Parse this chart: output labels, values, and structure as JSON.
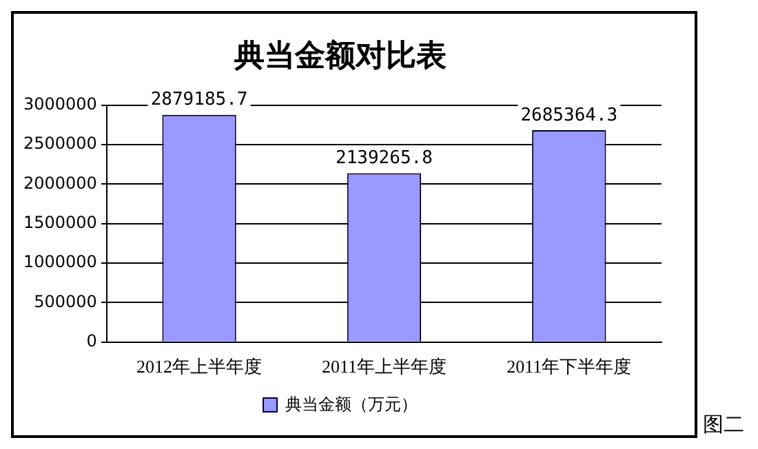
{
  "chart_data": {
    "type": "bar",
    "title": "典当金额对比表",
    "categories": [
      "2012年上半年度",
      "2011年上半年度",
      "2011年下半年度"
    ],
    "series": [
      {
        "name": "典当金额（万元）",
        "color": "#9999ff",
        "values": [
          2879185.7,
          2139265.8,
          2685364.3
        ]
      }
    ],
    "ylim": [
      0,
      3000000
    ],
    "yticks": [
      0,
      500000,
      1000000,
      1500000,
      2000000,
      2500000,
      3000000
    ],
    "grid": "y",
    "legend": "bottom",
    "data_labels": true,
    "annotations": [
      "图二"
    ]
  }
}
